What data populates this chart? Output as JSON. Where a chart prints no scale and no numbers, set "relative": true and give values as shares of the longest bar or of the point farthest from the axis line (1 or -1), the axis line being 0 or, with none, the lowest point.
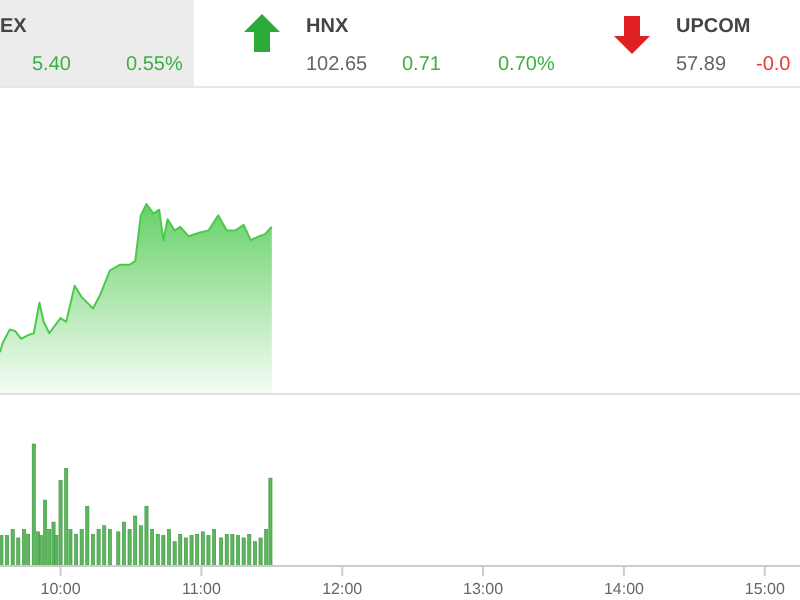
{
  "chart_data": [
    {
      "type": "other",
      "annotations": [
        "EX",
        "5.40",
        "0.55%",
        "HNX",
        "102.65",
        "0.71",
        "0.70%",
        "UPCOM",
        "57.89",
        "-0.0"
      ]
    },
    {
      "type": "area",
      "relative": true,
      "color": "#4cc94c",
      "xlim": [
        9.57,
        15.25
      ],
      "x": [
        9.57,
        9.59,
        9.64,
        9.68,
        9.72,
        9.77,
        9.81,
        9.85,
        9.88,
        9.92,
        10.0,
        10.04,
        10.1,
        10.15,
        10.23,
        10.28,
        10.35,
        10.42,
        10.49,
        10.53,
        10.57,
        10.61,
        10.66,
        10.7,
        10.73,
        10.76,
        10.81,
        10.85,
        10.91,
        10.99,
        11.05,
        11.12,
        11.18,
        11.24,
        11.3,
        11.35,
        11.41,
        11.45,
        11.5
      ],
      "values": [
        0.22,
        0.27,
        0.34,
        0.33,
        0.29,
        0.31,
        0.32,
        0.48,
        0.38,
        0.32,
        0.4,
        0.38,
        0.57,
        0.51,
        0.45,
        0.52,
        0.65,
        0.68,
        0.68,
        0.7,
        0.94,
        1.0,
        0.95,
        0.97,
        0.81,
        0.92,
        0.86,
        0.88,
        0.83,
        0.85,
        0.86,
        0.94,
        0.86,
        0.86,
        0.89,
        0.81,
        0.83,
        0.84,
        0.88
      ]
    },
    {
      "type": "bar",
      "relative": true,
      "color": "#5cb85c",
      "xlim": [
        9.57,
        15.25
      ],
      "xticks": [
        {
          "value": 10,
          "label": "10:00"
        },
        {
          "value": 11,
          "label": "11:00"
        },
        {
          "value": 12,
          "label": "12:00"
        },
        {
          "value": 13,
          "label": "13:00"
        },
        {
          "value": 14,
          "label": "14:00"
        },
        {
          "value": 15,
          "label": "15:00"
        }
      ],
      "x": [
        9.58,
        9.62,
        9.66,
        9.7,
        9.74,
        9.77,
        9.81,
        9.84,
        9.86,
        9.89,
        9.92,
        9.95,
        9.97,
        10.0,
        10.04,
        10.07,
        10.11,
        10.15,
        10.19,
        10.23,
        10.27,
        10.31,
        10.35,
        10.41,
        10.45,
        10.49,
        10.53,
        10.57,
        10.61,
        10.65,
        10.69,
        10.73,
        10.77,
        10.81,
        10.85,
        10.89,
        10.93,
        10.97,
        11.01,
        11.05,
        11.09,
        11.14,
        11.18,
        11.22,
        11.26,
        11.3,
        11.34,
        11.38,
        11.42,
        11.46,
        11.49
      ],
      "values": [
        0.25,
        0.25,
        0.3,
        0.23,
        0.3,
        0.26,
        1.0,
        0.28,
        0.25,
        0.54,
        0.3,
        0.36,
        0.25,
        0.7,
        0.8,
        0.3,
        0.26,
        0.3,
        0.49,
        0.26,
        0.3,
        0.33,
        0.3,
        0.28,
        0.36,
        0.3,
        0.41,
        0.33,
        0.49,
        0.3,
        0.26,
        0.25,
        0.3,
        0.2,
        0.26,
        0.23,
        0.25,
        0.26,
        0.28,
        0.25,
        0.3,
        0.23,
        0.26,
        0.26,
        0.25,
        0.23,
        0.26,
        0.2,
        0.23,
        0.3,
        0.72
      ]
    }
  ]
}
